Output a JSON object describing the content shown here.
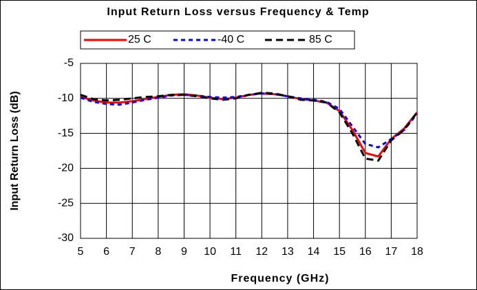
{
  "chart_data": {
    "type": "line",
    "title": "Input Return Loss versus Frequency & Temp",
    "xlabel": "Frequency (GHz)",
    "ylabel": "Input Return Loss (dB)",
    "x": [
      5,
      5.5,
      6,
      6.5,
      7,
      7.5,
      8,
      8.5,
      9,
      9.5,
      10,
      10.5,
      11,
      11.5,
      12,
      12.5,
      13,
      13.5,
      14,
      14.5,
      15,
      15.5,
      16,
      16.5,
      17,
      17.5,
      18
    ],
    "series": [
      {
        "name": "25 C",
        "color": "#ff0000",
        "dash": "solid",
        "values": [
          -9.8,
          -10.3,
          -10.6,
          -10.6,
          -10.4,
          -10.1,
          -9.8,
          -9.5,
          -9.4,
          -9.6,
          -9.9,
          -10.1,
          -9.9,
          -9.5,
          -9.3,
          -9.4,
          -9.7,
          -10.1,
          -10.3,
          -10.6,
          -11.8,
          -14.5,
          -17.8,
          -18.3,
          -15.8,
          -14.3,
          -12
        ]
      },
      {
        "name": "-40 C",
        "color": "#0000ff",
        "dash": "dashed",
        "values": [
          -9.9,
          -10.5,
          -10.8,
          -10.9,
          -10.6,
          -10.2,
          -9.9,
          -9.6,
          -9.5,
          -9.6,
          -9.8,
          -9.9,
          -9.8,
          -9.5,
          -9.3,
          -9.4,
          -9.7,
          -10.0,
          -10.2,
          -10.5,
          -11.5,
          -14.0,
          -16.5,
          -17.0,
          -15.8,
          -14.5,
          -12.2
        ]
      },
      {
        "name": "85 C",
        "color": "#000000",
        "dash": "dashed",
        "values": [
          -9.5,
          -10.1,
          -10.3,
          -10.2,
          -10.0,
          -9.8,
          -9.7,
          -9.5,
          -9.5,
          -9.7,
          -10.0,
          -10.2,
          -10.0,
          -9.5,
          -9.2,
          -9.3,
          -9.7,
          -10.2,
          -10.3,
          -10.6,
          -12,
          -15,
          -18.6,
          -18.9,
          -16,
          -14.5,
          -12
        ]
      }
    ],
    "xlim": [
      5,
      18
    ],
    "xticks": [
      5,
      6,
      7,
      8,
      9,
      10,
      11,
      12,
      13,
      14,
      15,
      16,
      17,
      18
    ],
    "ylim": [
      -30,
      -5
    ],
    "yticks": [
      -30,
      -25,
      -20,
      -15,
      -10,
      -5
    ],
    "grid": true
  }
}
